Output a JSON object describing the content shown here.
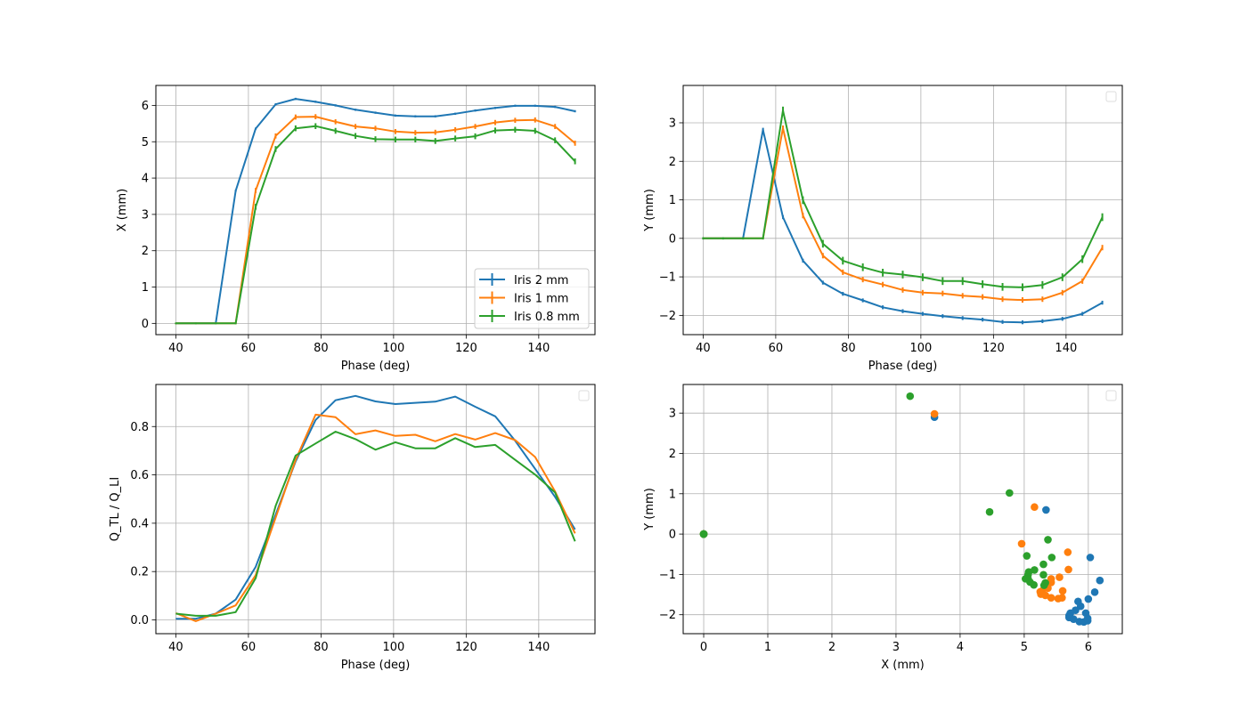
{
  "colors": {
    "blue": "#1f77b4",
    "orange": "#ff7f0e",
    "green": "#2ca02c",
    "grid": "#b0b0b0"
  },
  "phase": [
    40,
    45.5,
    51,
    56.5,
    62,
    67.5,
    73,
    78.5,
    84,
    89.5,
    95,
    100.5,
    106,
    111.5,
    117,
    122.5,
    128,
    133.5,
    139,
    144.5,
    150
  ],
  "chart_data": [
    {
      "type": "line",
      "title": "",
      "xlabel": "Phase (deg)",
      "ylabel": "X (mm)",
      "xlim": [
        34.5,
        155.5
      ],
      "ylim": [
        -0.31,
        6.55
      ],
      "xticks": [
        {
          "v": 40,
          "label": "40"
        },
        {
          "v": 60,
          "label": "60"
        },
        {
          "v": 80,
          "label": "80"
        },
        {
          "v": 100,
          "label": "100"
        },
        {
          "v": 120,
          "label": "120"
        },
        {
          "v": 140,
          "label": "140"
        }
      ],
      "yticks": [
        {
          "v": 0,
          "label": "0"
        },
        {
          "v": 1,
          "label": "1"
        },
        {
          "v": 2,
          "label": "2"
        },
        {
          "v": 3,
          "label": "3"
        },
        {
          "v": 4,
          "label": "4"
        },
        {
          "v": 5,
          "label": "5"
        },
        {
          "v": 6,
          "label": "6"
        }
      ],
      "grid": true,
      "errorbars": true,
      "legend": "lower-right",
      "series": [
        {
          "name": "Iris 2 mm",
          "color": "#1f77b4",
          "yerr": 0.03,
          "y": [
            0,
            0,
            0,
            3.65,
            5.36,
            6.03,
            6.18,
            6.1,
            6.0,
            5.88,
            5.8,
            5.72,
            5.7,
            5.7,
            5.77,
            5.86,
            5.93,
            5.99,
            5.99,
            5.96,
            5.84
          ]
        },
        {
          "name": "Iris 1 mm",
          "color": "#ff7f0e",
          "yerr": 0.07,
          "y": [
            0,
            0,
            0,
            0,
            3.66,
            5.16,
            5.68,
            5.69,
            5.55,
            5.42,
            5.37,
            5.28,
            5.25,
            5.26,
            5.33,
            5.42,
            5.53,
            5.59,
            5.6,
            5.42,
            4.96
          ]
        },
        {
          "name": "Iris 0.8 mm",
          "color": "#2ca02c",
          "yerr": 0.08,
          "y": [
            0,
            0,
            0,
            0,
            3.21,
            4.8,
            5.37,
            5.43,
            5.3,
            5.16,
            5.07,
            5.06,
            5.06,
            5.02,
            5.09,
            5.15,
            5.31,
            5.33,
            5.3,
            5.04,
            4.46
          ]
        }
      ]
    },
    {
      "type": "line",
      "title": "",
      "xlabel": "Phase (deg)",
      "ylabel": "Y (mm)",
      "xlim": [
        34.5,
        155.5
      ],
      "ylim": [
        -2.5,
        3.97
      ],
      "xticks": [
        {
          "v": 40,
          "label": "40"
        },
        {
          "v": 60,
          "label": "60"
        },
        {
          "v": 80,
          "label": "80"
        },
        {
          "v": 100,
          "label": "100"
        },
        {
          "v": 120,
          "label": "120"
        },
        {
          "v": 140,
          "label": "140"
        }
      ],
      "yticks": [
        {
          "v": -2,
          "label": "−2"
        },
        {
          "v": -1,
          "label": "−1"
        },
        {
          "v": 0,
          "label": "0"
        },
        {
          "v": 1,
          "label": "1"
        },
        {
          "v": 2,
          "label": "2"
        },
        {
          "v": 3,
          "label": "3"
        }
      ],
      "grid": true,
      "errorbars": true,
      "legend": "empty-top-right",
      "series": [
        {
          "name": "Iris 2 mm",
          "color": "#1f77b4",
          "yerr": 0.05,
          "y": [
            0,
            0,
            0,
            2.82,
            0.55,
            -0.58,
            -1.15,
            -1.44,
            -1.61,
            -1.79,
            -1.89,
            -1.96,
            -2.02,
            -2.07,
            -2.11,
            -2.17,
            -2.18,
            -2.15,
            -2.09,
            -1.96,
            -1.67
          ]
        },
        {
          "name": "Iris 1 mm",
          "color": "#ff7f0e",
          "yerr": 0.07,
          "y": [
            0,
            0,
            0,
            0,
            2.86,
            0.59,
            -0.45,
            -0.88,
            -1.07,
            -1.2,
            -1.34,
            -1.41,
            -1.43,
            -1.49,
            -1.52,
            -1.58,
            -1.6,
            -1.58,
            -1.41,
            -1.11,
            -0.24
          ]
        },
        {
          "name": "Iris 0.8 mm",
          "color": "#2ca02c",
          "yerr": 0.1,
          "y": [
            0,
            0,
            0,
            0,
            3.32,
            0.99,
            -0.14,
            -0.58,
            -0.75,
            -0.89,
            -0.94,
            -1.01,
            -1.11,
            -1.11,
            -1.19,
            -1.26,
            -1.27,
            -1.21,
            -1.01,
            -0.54,
            0.55
          ]
        }
      ]
    },
    {
      "type": "line",
      "title": "",
      "xlabel": "Phase (deg)",
      "ylabel": "Q_TL / Q_LI",
      "xlim": [
        34.5,
        155.5
      ],
      "ylim": [
        -0.057,
        0.974
      ],
      "xticks": [
        {
          "v": 40,
          "label": "40"
        },
        {
          "v": 60,
          "label": "60"
        },
        {
          "v": 80,
          "label": "80"
        },
        {
          "v": 100,
          "label": "100"
        },
        {
          "v": 120,
          "label": "120"
        },
        {
          "v": 140,
          "label": "140"
        }
      ],
      "yticks": [
        {
          "v": 0,
          "label": "0.0"
        },
        {
          "v": 0.2,
          "label": "0.2"
        },
        {
          "v": 0.4,
          "label": "0.4"
        },
        {
          "v": 0.6,
          "label": "0.6"
        },
        {
          "v": 0.8,
          "label": "0.8"
        }
      ],
      "grid": true,
      "errorbars": false,
      "legend": "empty-top-right",
      "series": [
        {
          "name": "Iris 2 mm",
          "color": "#1f77b4",
          "y": [
            0.005,
            0.005,
            0.026,
            0.084,
            0.219,
            0.435,
            0.656,
            0.827,
            0.909,
            0.927,
            0.904,
            0.893,
            0.898,
            0.903,
            0.924,
            0.882,
            0.842,
            0.741,
            0.625,
            0.509,
            0.374
          ]
        },
        {
          "name": "Iris 1 mm",
          "color": "#ff7f0e",
          "y": [
            0.028,
            -0.005,
            0.026,
            0.06,
            0.185,
            0.423,
            0.662,
            0.849,
            0.839,
            0.768,
            0.784,
            0.761,
            0.766,
            0.739,
            0.769,
            0.746,
            0.773,
            0.744,
            0.674,
            0.531,
            0.358
          ]
        },
        {
          "name": "Iris 0.8 mm",
          "color": "#2ca02c",
          "y": [
            0.026,
            0.017,
            0.017,
            0.032,
            0.172,
            0.472,
            0.68,
            0.73,
            0.779,
            0.748,
            0.704,
            0.735,
            0.71,
            0.71,
            0.752,
            0.715,
            0.724,
            0.662,
            0.601,
            0.527,
            0.325
          ]
        }
      ]
    },
    {
      "type": "scatter",
      "title": "",
      "xlabel": "X (mm)",
      "ylabel": "Y (mm)",
      "xlim": [
        -0.32,
        6.53
      ],
      "ylim": [
        -2.47,
        3.71
      ],
      "xticks": [
        {
          "v": 0,
          "label": "0"
        },
        {
          "v": 1,
          "label": "1"
        },
        {
          "v": 2,
          "label": "2"
        },
        {
          "v": 3,
          "label": "3"
        },
        {
          "v": 4,
          "label": "4"
        },
        {
          "v": 5,
          "label": "5"
        },
        {
          "v": 6,
          "label": "6"
        }
      ],
      "yticks": [
        {
          "v": -2,
          "label": "−2"
        },
        {
          "v": -1,
          "label": "−1"
        },
        {
          "v": 0,
          "label": "0"
        },
        {
          "v": 1,
          "label": "1"
        },
        {
          "v": 2,
          "label": "2"
        },
        {
          "v": 3,
          "label": "3"
        }
      ],
      "grid": true,
      "legend": "empty-top-right",
      "series": [
        {
          "name": "Iris 2 mm",
          "color": "#1f77b4",
          "x": [
            0,
            0,
            0,
            3.6,
            5.34,
            6.03,
            6.18,
            6.1,
            6.0,
            5.88,
            5.8,
            5.72,
            5.7,
            5.7,
            5.77,
            5.86,
            5.93,
            5.99,
            5.99,
            5.96,
            5.84
          ],
          "y": [
            0,
            0,
            0,
            2.9,
            0.6,
            -0.58,
            -1.15,
            -1.44,
            -1.61,
            -1.79,
            -1.89,
            -1.96,
            -2.02,
            -2.07,
            -2.11,
            -2.17,
            -2.18,
            -2.15,
            -2.09,
            -1.96,
            -1.67
          ]
        },
        {
          "name": "Iris 1 mm",
          "color": "#ff7f0e",
          "x": [
            0,
            0,
            0,
            0,
            3.6,
            5.16,
            5.68,
            5.69,
            5.55,
            5.42,
            5.37,
            5.28,
            5.25,
            5.26,
            5.33,
            5.42,
            5.53,
            5.59,
            5.6,
            5.42,
            4.96
          ],
          "y": [
            0,
            0,
            0,
            0,
            2.98,
            0.67,
            -0.45,
            -0.88,
            -1.07,
            -1.2,
            -1.34,
            -1.41,
            -1.43,
            -1.49,
            -1.52,
            -1.58,
            -1.6,
            -1.58,
            -1.41,
            -1.11,
            -0.24
          ]
        },
        {
          "name": "Iris 0.8 mm",
          "color": "#2ca02c",
          "x": [
            0,
            0,
            0,
            0,
            3.22,
            4.77,
            5.37,
            5.43,
            5.3,
            5.16,
            5.07,
            5.06,
            5.06,
            5.02,
            5.09,
            5.15,
            5.31,
            5.33,
            5.3,
            5.04,
            4.46
          ],
          "y": [
            0,
            0,
            0,
            0,
            3.42,
            1.02,
            -0.14,
            -0.58,
            -0.75,
            -0.89,
            -0.94,
            -1.01,
            -1.11,
            -1.11,
            -1.19,
            -1.26,
            -1.27,
            -1.21,
            -1.01,
            -0.54,
            0.55
          ]
        }
      ]
    }
  ]
}
